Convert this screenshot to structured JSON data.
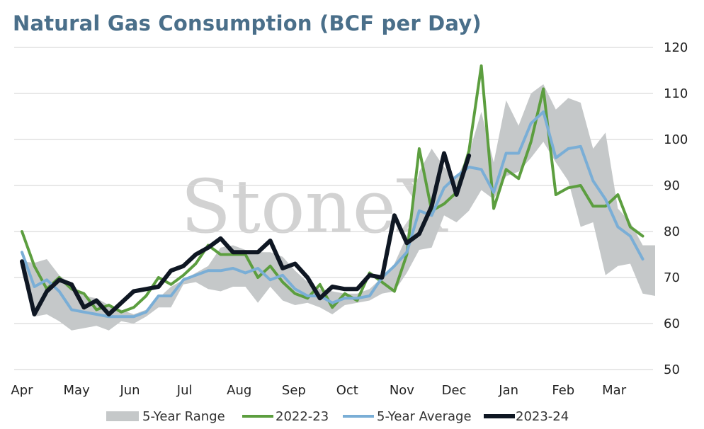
{
  "chart_data": {
    "type": "line",
    "title": "Natural Gas Consumption (BCF per Day)",
    "watermark": "StoneX",
    "watermark_mark": "®",
    "y_axis_side": "right",
    "ylim": [
      50,
      120
    ],
    "yticks": [
      "50",
      "60",
      "70",
      "80",
      "90",
      "100",
      "110",
      "120"
    ],
    "grid": true,
    "legend_position": "bottom",
    "x_count": 52,
    "x_labels": [
      {
        "label": "Apr",
        "index": 0
      },
      {
        "label": "May",
        "index": 4.4
      },
      {
        "label": "Jun",
        "index": 8.7
      },
      {
        "label": "Jul",
        "index": 13.1
      },
      {
        "label": "Aug",
        "index": 17.5
      },
      {
        "label": "Sep",
        "index": 21.9
      },
      {
        "label": "Oct",
        "index": 26.2
      },
      {
        "label": "Nov",
        "index": 30.6
      },
      {
        "label": "Dec",
        "index": 34.8
      },
      {
        "label": "Jan",
        "index": 39.2
      },
      {
        "label": "Feb",
        "index": 43.6
      },
      {
        "label": "Mar",
        "index": 47.7
      }
    ],
    "range": {
      "name": "5-Year Range",
      "color": "#c5c8c9",
      "upper": [
        73.5,
        73.2,
        74.0,
        70.5,
        68.5,
        66.0,
        65.5,
        64.0,
        63.0,
        62.0,
        63.0,
        65.5,
        68.0,
        69.5,
        71.0,
        72.5,
        76.5,
        77.0,
        76.0,
        75.5,
        75.5,
        74.5,
        71.5,
        69.0,
        67.5,
        67.0,
        66.5,
        66.5,
        67.5,
        70.0,
        73.0,
        79.0,
        93.0,
        98.0,
        94.0,
        91.5,
        97.0,
        106.0,
        95.0,
        108.5,
        103.0,
        110.0,
        112.0,
        106.5,
        109.0,
        108.0,
        98.0,
        101.5,
        85.0,
        82.0,
        77.0,
        77.0
      ],
      "lower": [
        71.0,
        61.5,
        62.0,
        60.5,
        58.5,
        59.0,
        59.5,
        58.5,
        60.5,
        60.0,
        61.5,
        63.5,
        63.5,
        68.5,
        69.0,
        67.5,
        67.0,
        68.0,
        68.0,
        64.5,
        68.0,
        65.0,
        64.0,
        64.5,
        63.5,
        62.0,
        64.0,
        64.5,
        65.0,
        66.5,
        67.0,
        71.0,
        76.0,
        76.5,
        83.5,
        82.0,
        84.5,
        89.0,
        87.0,
        92.0,
        93.0,
        96.0,
        99.5,
        95.0,
        91.0,
        81.0,
        82.0,
        70.5,
        72.5,
        73.0,
        66.5,
        66.0
      ]
    },
    "series": [
      {
        "name": "2022-23",
        "color": "#5c9e3f",
        "width": 4,
        "values": [
          80.0,
          72.5,
          67.5,
          70.0,
          67.5,
          66.5,
          63.0,
          64.0,
          62.5,
          63.5,
          66.0,
          70.0,
          68.5,
          70.5,
          73.0,
          77.0,
          75.0,
          75.0,
          75.0,
          70.0,
          72.5,
          69.0,
          66.5,
          65.5,
          68.5,
          63.5,
          66.5,
          65.0,
          71.0,
          69.0,
          67.0,
          75.0,
          98.0,
          84.5,
          86.0,
          88.5,
          97.5,
          116.0,
          85.0,
          93.5,
          91.5,
          99.5,
          111.0,
          88.0,
          89.5,
          90.0,
          85.5,
          85.5,
          88.0,
          81.0,
          79.0
        ]
      },
      {
        "name": "5-Year Average",
        "color": "#7aaed6",
        "width": 4,
        "values": [
          75.5,
          68.0,
          69.5,
          67.0,
          63.0,
          62.5,
          62.0,
          61.5,
          61.5,
          61.5,
          62.5,
          66.0,
          66.0,
          69.5,
          70.5,
          71.5,
          71.5,
          72.0,
          71.0,
          72.0,
          69.5,
          70.5,
          67.5,
          66.0,
          66.0,
          64.5,
          65.5,
          65.5,
          66.0,
          70.0,
          72.5,
          75.5,
          84.5,
          83.5,
          89.5,
          92.0,
          94.0,
          93.5,
          88.5,
          97.0,
          97.0,
          103.5,
          106.0,
          96.0,
          98.0,
          98.5,
          91.0,
          87.0,
          81.0,
          79.0,
          74.0
        ]
      },
      {
        "name": "2023-24",
        "color": "#0f1723",
        "width": 6,
        "values": [
          73.5,
          62.0,
          67.0,
          69.5,
          68.5,
          63.5,
          65.0,
          62.0,
          64.5,
          67.0,
          67.5,
          68.0,
          71.5,
          72.5,
          75.0,
          76.5,
          78.5,
          75.5,
          75.5,
          75.5,
          78.0,
          72.0,
          73.0,
          70.0,
          65.5,
          68.0,
          67.5,
          67.5,
          70.5,
          70.0,
          83.5,
          77.5,
          79.5,
          85.5,
          97.0,
          88.0,
          96.5
        ]
      }
    ]
  }
}
